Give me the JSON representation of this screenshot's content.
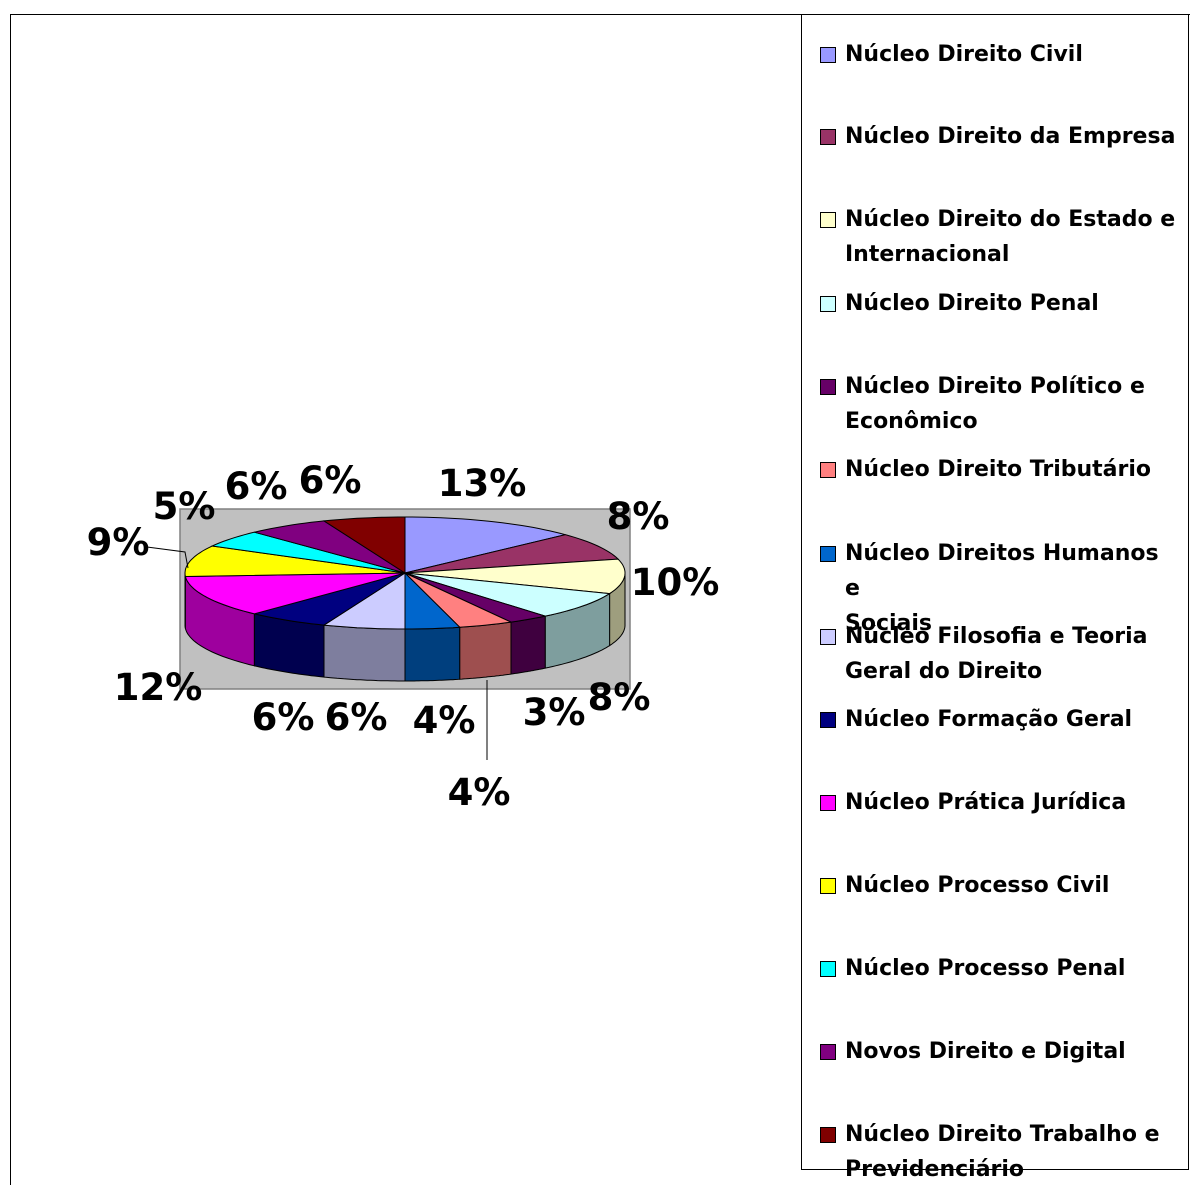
{
  "chart_data": {
    "type": "pie",
    "style": "3d-exploded-none",
    "legend_position": "right",
    "categories": [
      "Núcleo Direito Civil",
      "Núcleo Direito da Empresa",
      "Núcleo Direito do Estado e Internacional",
      "Núcleo Direito Penal",
      "Núcleo Direito Político e Econômico",
      "Núcleo Direito Tributário",
      "Núcleo Direitos Humanos e Sociais",
      "Núcleo Filosofia e Teoria Geral do Direito",
      "Núcleo Formação Geral",
      "Núcleo Prática Jurídica",
      "Núcleo Processo Civil",
      "Núcleo Processo Penal",
      "Novos Direito e Digital",
      "Núcleo Direito Trabalho e Previdenciário"
    ],
    "legend_lines": [
      [
        "Núcleo Direito Civil"
      ],
      [
        "Núcleo Direito da Empresa"
      ],
      [
        "Núcleo Direito do Estado e",
        "Internacional"
      ],
      [
        "Núcleo Direito Penal"
      ],
      [
        "Núcleo Direito Político e",
        "Econômico"
      ],
      [
        "Núcleo Direito Tributário"
      ],
      [
        "Núcleo Direitos Humanos e",
        "Sociais"
      ],
      [
        "Núcleo Filosofia e Teoria",
        "Geral do Direito"
      ],
      [
        "Núcleo Formação Geral"
      ],
      [
        "Núcleo Prática Jurídica"
      ],
      [
        "Núcleo Processo Civil"
      ],
      [
        "Núcleo Processo Penal"
      ],
      [
        "Novos Direito e Digital"
      ],
      [
        "Núcleo Direito Trabalho e",
        "Previdenciário"
      ]
    ],
    "values": [
      13,
      8,
      10,
      8,
      3,
      4,
      4,
      6,
      6,
      12,
      9,
      5,
      6,
      6
    ],
    "labels": [
      "13%",
      "8%",
      "10%",
      "8%",
      "3%",
      "4%",
      "4%",
      "6%",
      "6%",
      "12%",
      "9%",
      "5%",
      "6%",
      "6%"
    ],
    "colors": [
      "#9999ff",
      "#993366",
      "#ffffcc",
      "#ccffff",
      "#660066",
      "#ff8080",
      "#0066cc",
      "#ccccff",
      "#000080",
      "#ff00ff",
      "#ffff00",
      "#00ffff",
      "#800080",
      "#800000"
    ],
    "plot_background": "#c0c0c0"
  }
}
